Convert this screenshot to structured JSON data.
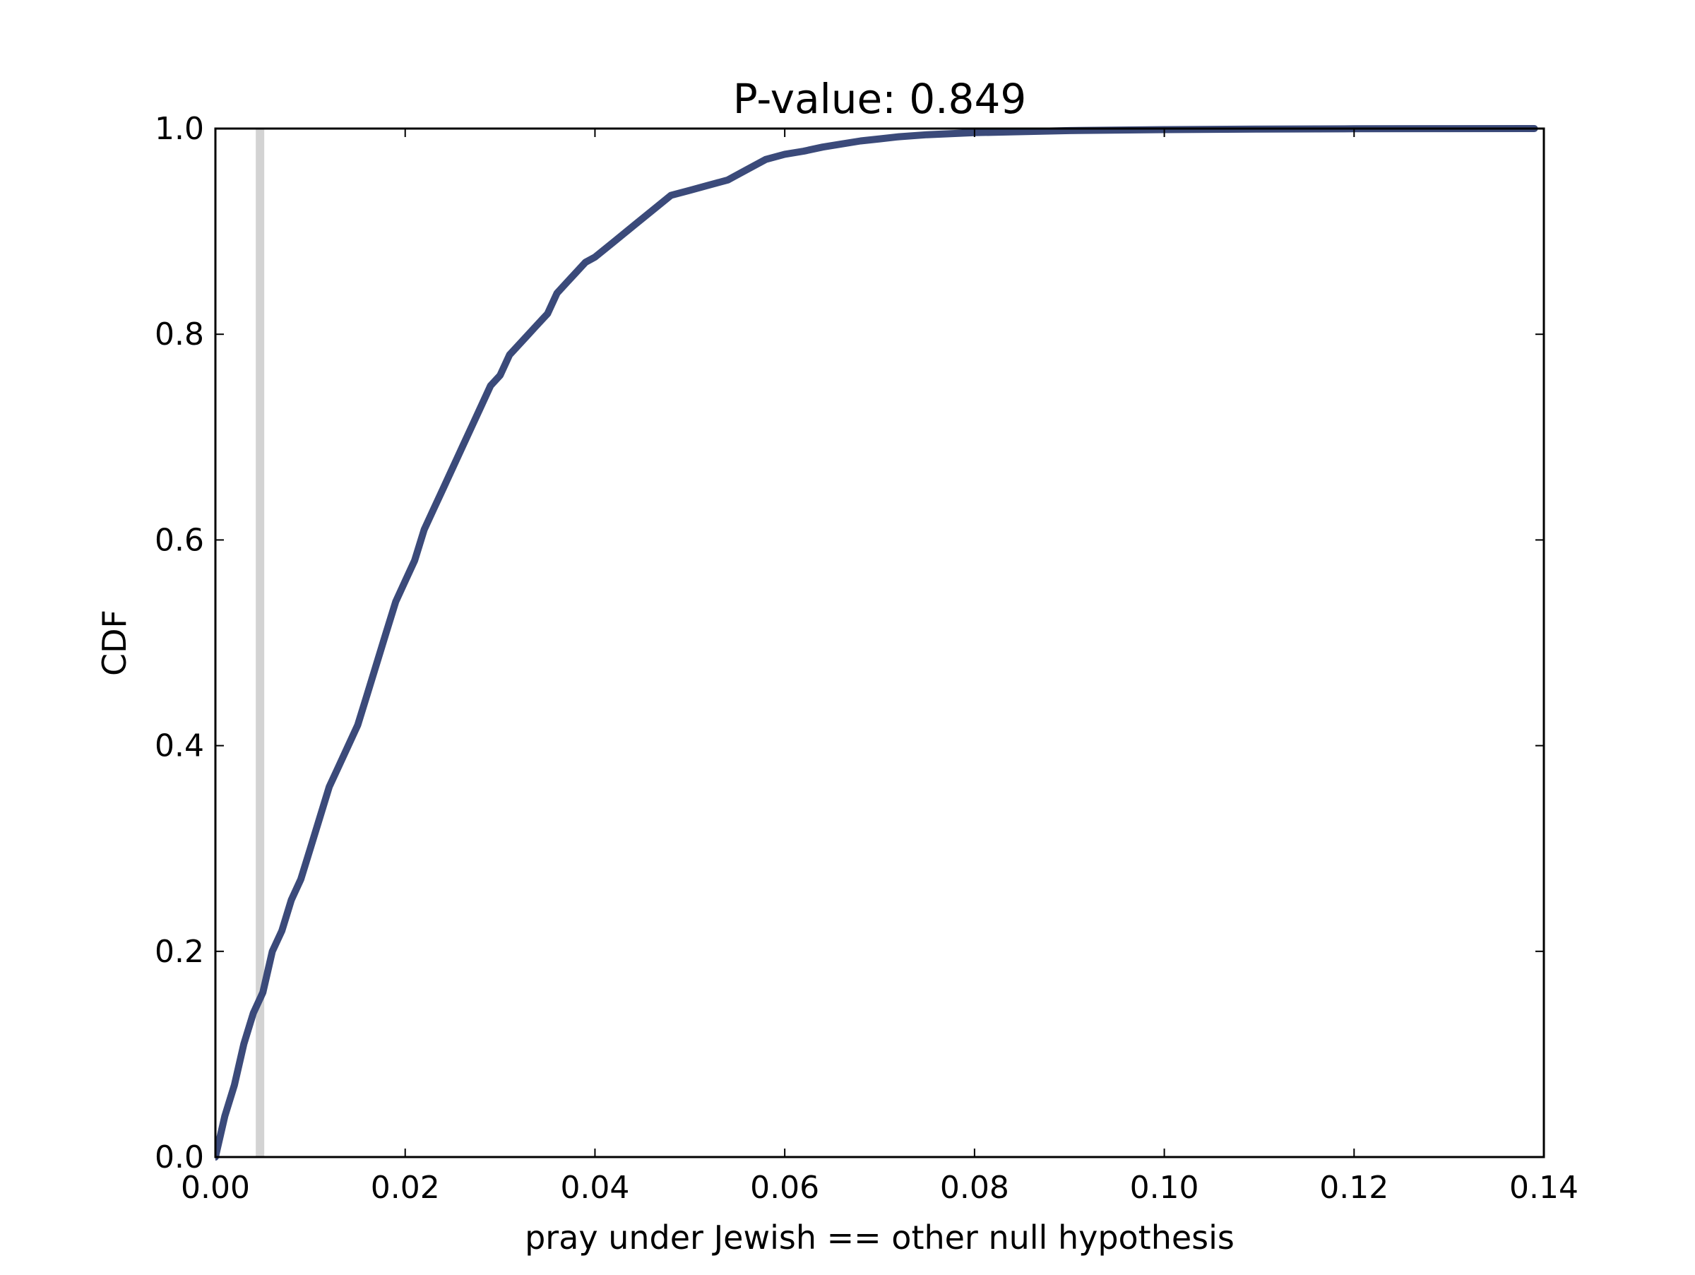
{
  "chart_data": {
    "type": "line",
    "title": "P-value: 0.849",
    "xlabel": "pray under Jewish == other null hypothesis",
    "ylabel": "CDF",
    "xlim": [
      0.0,
      0.14
    ],
    "ylim": [
      0.0,
      1.0
    ],
    "x_ticks": [
      "0.00",
      "0.02",
      "0.04",
      "0.06",
      "0.08",
      "0.10",
      "0.12",
      "0.14"
    ],
    "y_ticks": [
      "0.0",
      "0.2",
      "0.4",
      "0.6",
      "0.8",
      "1.0"
    ],
    "grid": false,
    "reference_line": {
      "x": 0.0047,
      "color": "#d3d3d3"
    },
    "series": [
      {
        "color": "#3b4a7a",
        "x": [
          0.0,
          0.001,
          0.002,
          0.003,
          0.004,
          0.005,
          0.006,
          0.007,
          0.008,
          0.009,
          0.01,
          0.011,
          0.012,
          0.013,
          0.014,
          0.015,
          0.016,
          0.017,
          0.018,
          0.019,
          0.02,
          0.021,
          0.022,
          0.023,
          0.024,
          0.025,
          0.026,
          0.027,
          0.028,
          0.029,
          0.03,
          0.031,
          0.032,
          0.033,
          0.034,
          0.035,
          0.036,
          0.037,
          0.038,
          0.039,
          0.04,
          0.042,
          0.044,
          0.046,
          0.048,
          0.05,
          0.052,
          0.054,
          0.056,
          0.058,
          0.06,
          0.062,
          0.064,
          0.066,
          0.068,
          0.07,
          0.072,
          0.075,
          0.08,
          0.085,
          0.09,
          0.1,
          0.11,
          0.12,
          0.13,
          0.139
        ],
        "y": [
          0.0,
          0.04,
          0.07,
          0.11,
          0.14,
          0.16,
          0.2,
          0.22,
          0.25,
          0.27,
          0.3,
          0.33,
          0.36,
          0.38,
          0.4,
          0.42,
          0.45,
          0.48,
          0.51,
          0.54,
          0.56,
          0.58,
          0.61,
          0.63,
          0.65,
          0.67,
          0.69,
          0.71,
          0.73,
          0.75,
          0.76,
          0.78,
          0.79,
          0.8,
          0.81,
          0.82,
          0.84,
          0.85,
          0.86,
          0.87,
          0.875,
          0.89,
          0.905,
          0.92,
          0.935,
          0.94,
          0.945,
          0.95,
          0.96,
          0.97,
          0.975,
          0.978,
          0.982,
          0.985,
          0.988,
          0.99,
          0.992,
          0.994,
          0.996,
          0.997,
          0.998,
          0.999,
          0.9995,
          0.9998,
          0.9999,
          1.0
        ]
      }
    ]
  }
}
